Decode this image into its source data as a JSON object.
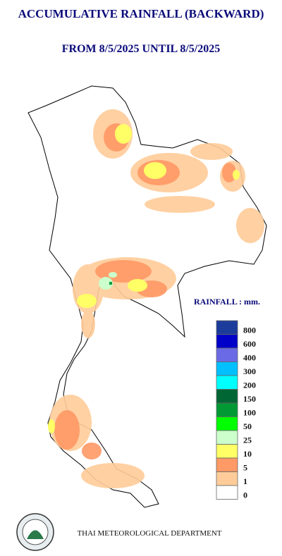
{
  "header": {
    "title": "ACCUMULATIVE RAINFALL (BACKWARD)",
    "subtitle": "FROM 8/5/2025 UNTIL 8/5/2025"
  },
  "legend": {
    "title": "RAINFALL : mm.",
    "items": [
      {
        "value": 800,
        "color": "#1c3c9c"
      },
      {
        "value": 600,
        "color": "#0000c8"
      },
      {
        "value": 400,
        "color": "#6a6ae6"
      },
      {
        "value": 300,
        "color": "#00c0ff"
      },
      {
        "value": 200,
        "color": "#00ffff"
      },
      {
        "value": 150,
        "color": "#006633"
      },
      {
        "value": 100,
        "color": "#009933"
      },
      {
        "value": 50,
        "color": "#00ff00"
      },
      {
        "value": 25,
        "color": "#ccffcc"
      },
      {
        "value": 10,
        "color": "#ffff66"
      },
      {
        "value": 5,
        "color": "#ff9966"
      },
      {
        "value": 1,
        "color": "#ffcc99"
      },
      {
        "value": 0,
        "color": "#ffffff"
      }
    ]
  },
  "footer": "THAI METEOROLOGICAL DEPARTMENT"
}
